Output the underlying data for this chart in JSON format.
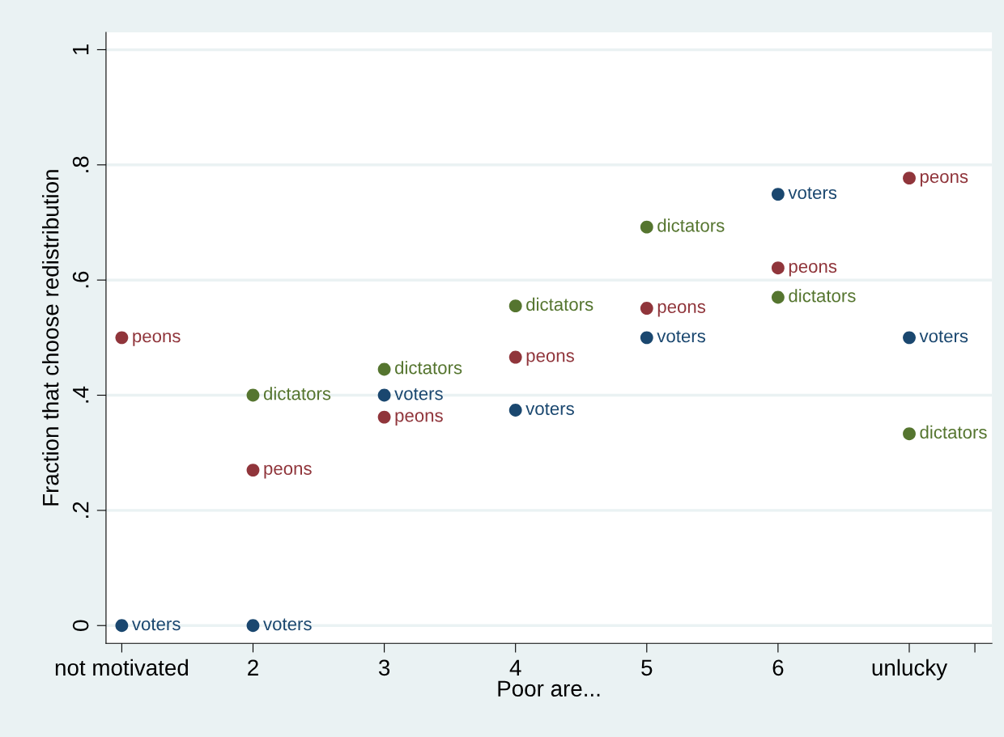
{
  "chart_data": {
    "type": "scatter",
    "xlabel": "Poor are...",
    "ylabel": "Fraction that choose redistribution",
    "x": [
      1,
      2,
      3,
      4,
      5,
      6,
      7
    ],
    "series": [
      {
        "name": "peons",
        "color": "#90353b",
        "values": [
          0.5,
          0.27,
          0.362,
          0.466,
          0.551,
          0.621,
          0.777
        ]
      },
      {
        "name": "voters",
        "color": "#1a476f",
        "values": [
          0,
          0,
          0.4,
          0.374,
          0.5,
          0.749,
          0.5
        ]
      },
      {
        "name": "dictators",
        "color": "#55752f",
        "values": [
          null,
          0.4,
          0.445,
          0.555,
          0.692,
          0.57,
          0.333
        ]
      }
    ],
    "xlim": [
      0.88,
      7.63
    ],
    "ylim": [
      -0.031,
      1.03
    ],
    "xticks": [
      {
        "value": 1,
        "label": "not motivated"
      },
      2,
      3,
      4,
      5,
      6,
      {
        "value": 7,
        "label": "unlucky"
      },
      {
        "value": 7.5,
        "label": null
      }
    ],
    "yticks": [
      0,
      {
        "value": 0.2,
        "label": ".2"
      },
      {
        "value": 0.4,
        "label": ".4"
      },
      {
        "value": 0.6,
        "label": ".6"
      },
      {
        "value": 0.8,
        "label": ".8"
      },
      1
    ],
    "grid": "y",
    "marker": "circle",
    "legend": false
  }
}
